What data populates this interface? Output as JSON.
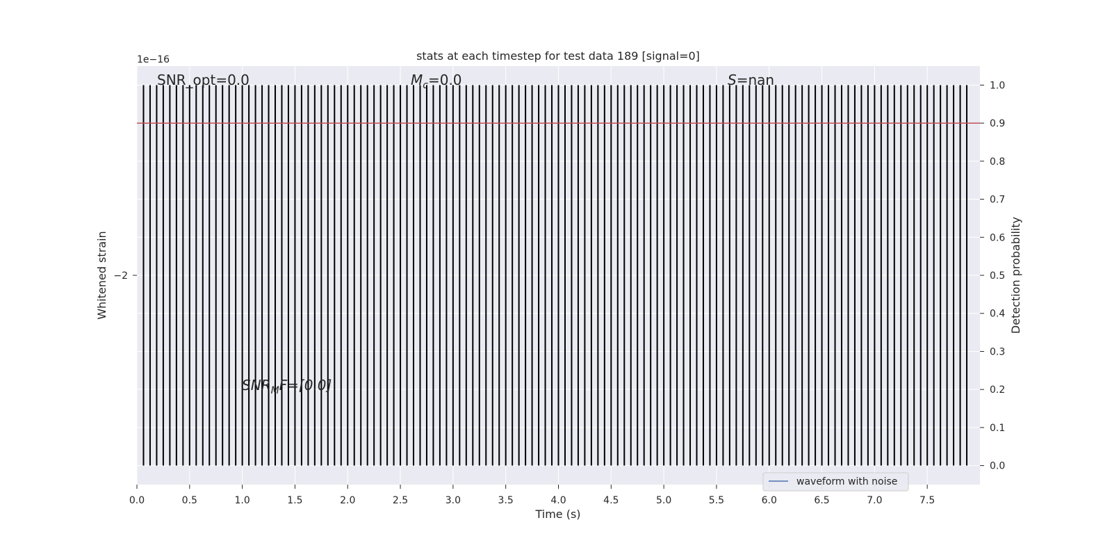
{
  "chart_data": {
    "type": "bar",
    "title": "stats at each timestep for test data 189 [signal=0]",
    "xlabel": "Time (s)",
    "ylabel_left": "Whitened strain",
    "ylabel_right": "Detection probability",
    "xlim": [
      0,
      8
    ],
    "ylim_right": [
      -0.05,
      1.05
    ],
    "x_ticks": [
      "0.0",
      "0.5",
      "1.0",
      "1.5",
      "2.0",
      "2.5",
      "3.0",
      "3.5",
      "4.0",
      "4.5",
      "5.0",
      "5.5",
      "6.0",
      "6.5",
      "7.0",
      "7.5"
    ],
    "y_right_ticks": [
      "0.0",
      "0.1",
      "0.2",
      "0.3",
      "0.4",
      "0.5",
      "0.6",
      "0.7",
      "0.8",
      "0.9",
      "1.0"
    ],
    "y_left_ticks": [
      "−2"
    ],
    "y_left_offset": "1e−16",
    "grid": true,
    "detection_probability": {
      "timestep": 0.0625,
      "start": 0.0625,
      "count": 126,
      "value": 1.0,
      "color": "#000000"
    },
    "threshold": {
      "value": 0.9,
      "color": "#c44e52"
    },
    "series": [
      {
        "name": "waveform with noise",
        "color": "#4c72b0"
      }
    ],
    "legend_placement": "lower-right",
    "annotations": {
      "snr_opt": "SNR_opt=0.0",
      "mc_symbol": "M",
      "mc_sub": "c",
      "mc_value": "=0.0",
      "s_symbol": "S",
      "s_value": "=nan",
      "snr_mf_symbol": "SNR",
      "snr_mf_sub": "M",
      "snr_mf_rest": "F=[0.0]"
    },
    "colors": {
      "axes_bg": "#eaeaf2",
      "grid": "#ffffff"
    }
  }
}
